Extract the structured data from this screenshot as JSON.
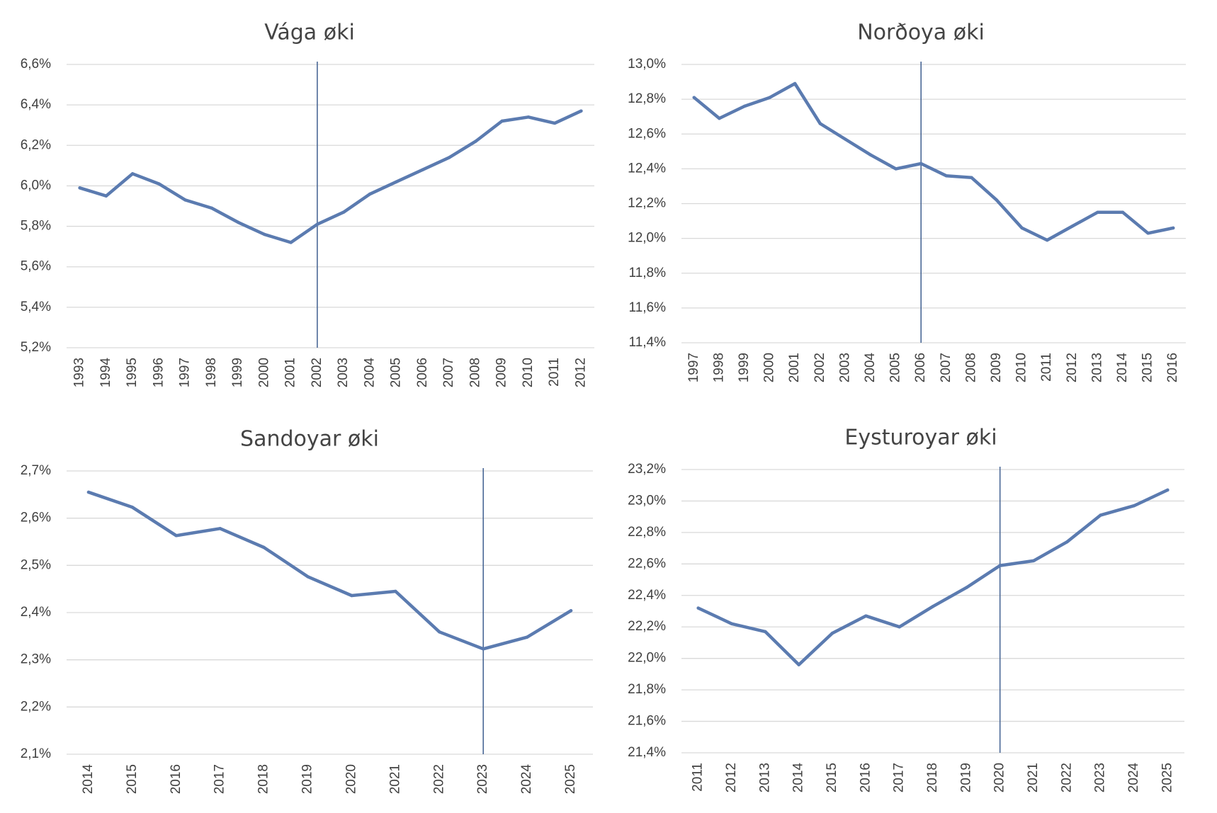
{
  "chart_data": [
    {
      "type": "line",
      "title": "Vága øki",
      "categories": [
        "1993",
        "1994",
        "1995",
        "1996",
        "1997",
        "1998",
        "1999",
        "2000",
        "2001",
        "2002",
        "2003",
        "2004",
        "2005",
        "2006",
        "2007",
        "2008",
        "2009",
        "2010",
        "2011",
        "2012"
      ],
      "series": [
        {
          "values": [
            5.99,
            5.95,
            6.06,
            6.01,
            5.93,
            5.89,
            5.82,
            5.76,
            5.72,
            5.81,
            5.87,
            5.96,
            6.02,
            6.08,
            6.14,
            6.22,
            6.32,
            6.34,
            6.31,
            6.37
          ]
        }
      ],
      "ylim": [
        5.2,
        6.6
      ],
      "yticks": [
        "6,6%",
        "6,4%",
        "6,2%",
        "6,0%",
        "5,8%",
        "5,6%",
        "5,4%",
        "5,2%"
      ],
      "marker_category": "2002",
      "grid": true,
      "colors": {
        "series": "#5b7bb0",
        "marker": "#4a6896",
        "grid": "#d9d9d9"
      }
    },
    {
      "type": "line",
      "title": "Norðoya øki",
      "categories": [
        "1997",
        "1998",
        "1999",
        "2000",
        "2001",
        "2002",
        "2003",
        "2004",
        "2005",
        "2006",
        "2007",
        "2008",
        "2009",
        "2010",
        "2011",
        "2012",
        "2013",
        "2014",
        "2015",
        "2016"
      ],
      "series": [
        {
          "values": [
            12.81,
            12.69,
            12.76,
            12.81,
            12.89,
            12.66,
            12.57,
            12.48,
            12.4,
            12.43,
            12.36,
            12.35,
            12.22,
            12.06,
            11.99,
            12.07,
            12.15,
            12.15,
            12.03,
            12.06
          ]
        }
      ],
      "ylim": [
        11.4,
        13.0
      ],
      "yticks": [
        "13,0%",
        "12,8%",
        "12,6%",
        "12,4%",
        "12,2%",
        "12,0%",
        "11,8%",
        "11,6%",
        "11,4%"
      ],
      "marker_category": "2006",
      "grid": true,
      "colors": {
        "series": "#5b7bb0",
        "marker": "#4a6896",
        "grid": "#d9d9d9"
      }
    },
    {
      "type": "line",
      "title": "Sandoyar øki",
      "categories": [
        "2014",
        "2015",
        "2016",
        "2017",
        "2018",
        "2019",
        "2020",
        "2021",
        "2022",
        "2023",
        "2024",
        "2025"
      ],
      "series": [
        {
          "values": [
            2.655,
            2.623,
            2.563,
            2.578,
            2.538,
            2.476,
            2.436,
            2.445,
            2.359,
            2.323,
            2.348,
            2.404
          ]
        }
      ],
      "ylim": [
        2.1,
        2.7
      ],
      "yticks": [
        "2,7%",
        "2,6%",
        "2,5%",
        "2,4%",
        "2,3%",
        "2,2%",
        "2,1%"
      ],
      "marker_category": "2023",
      "grid": true,
      "colors": {
        "series": "#5b7bb0",
        "marker": "#4a6896",
        "grid": "#d9d9d9"
      }
    },
    {
      "type": "line",
      "title": "Eysturoyar øki",
      "categories": [
        "2011",
        "2012",
        "2013",
        "2014",
        "2015",
        "2016",
        "2017",
        "2018",
        "2019",
        "2020",
        "2021",
        "2022",
        "2023",
        "2024",
        "2025"
      ],
      "series": [
        {
          "values": [
            22.32,
            22.22,
            22.17,
            21.96,
            22.16,
            22.27,
            22.2,
            22.33,
            22.45,
            22.59,
            22.62,
            22.74,
            22.91,
            22.97,
            23.07
          ]
        }
      ],
      "ylim": [
        21.4,
        23.2
      ],
      "yticks": [
        "23,2%",
        "23,0%",
        "22,8%",
        "22,6%",
        "22,4%",
        "22,2%",
        "22,0%",
        "21,8%",
        "21,6%",
        "21,4%"
      ],
      "marker_category": "2020",
      "grid": true,
      "colors": {
        "series": "#5b7bb0",
        "marker": "#4a6896",
        "grid": "#d9d9d9"
      }
    }
  ]
}
